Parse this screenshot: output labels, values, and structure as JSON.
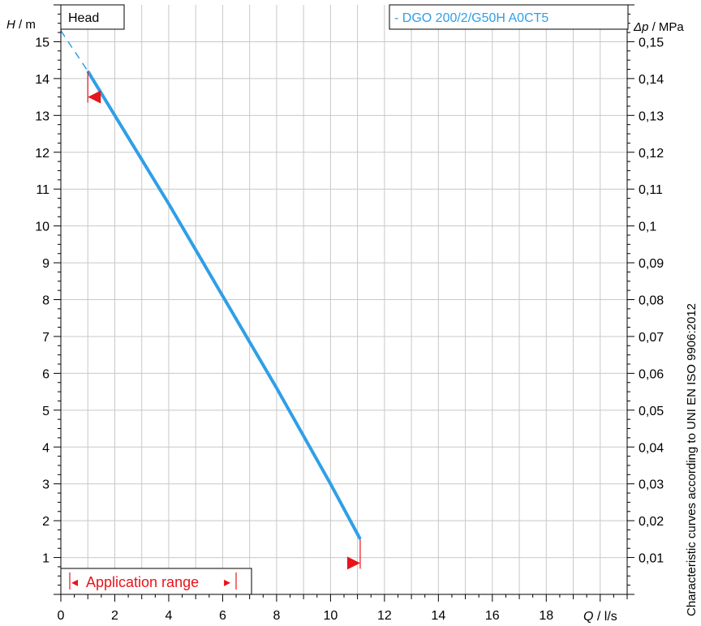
{
  "chart_data": {
    "type": "line",
    "title_box": "Head",
    "legend": "- DGO 200/2/G50H A0CT5",
    "series": [
      {
        "name": "DGO 200/2/G50H A0CT5",
        "color": "#2f9fe6",
        "x": [
          1.0,
          2.0,
          4.0,
          6.0,
          8.0,
          10.0,
          11.1
        ],
        "values": [
          14.2,
          13.0,
          10.6,
          8.1,
          5.6,
          3.0,
          1.5
        ]
      }
    ],
    "dashed_extension": {
      "x": [
        0.0,
        1.0
      ],
      "values": [
        15.3,
        14.2
      ]
    },
    "application_range": {
      "label": "Application range",
      "left_arrow": "◂",
      "right_arrow": "▸",
      "q_min": 1.0,
      "q_max": 11.1,
      "h_min_marker": 13.5,
      "h_max_marker": 0.85
    },
    "x_axis": {
      "label_var": "Q",
      "label_unit": " / l/s",
      "ticks": [
        "0",
        "2",
        "4",
        "6",
        "8",
        "10",
        "12",
        "14",
        "16",
        "18"
      ],
      "min": 0,
      "max": 21
    },
    "y_axis_left": {
      "label_var": "H",
      "label_unit": " / m",
      "ticks": [
        "1",
        "2",
        "3",
        "4",
        "5",
        "6",
        "7",
        "8",
        "9",
        "10",
        "11",
        "12",
        "13",
        "14",
        "15"
      ],
      "min": 0,
      "max": 16
    },
    "y_axis_right": {
      "label_var": "Δp",
      "label_unit": " / MPa",
      "ticks": [
        "0,01",
        "0,02",
        "0,03",
        "0,04",
        "0,05",
        "0,06",
        "0,07",
        "0,08",
        "0,09",
        "0,1",
        "0,11",
        "0,12",
        "0,13",
        "0,14",
        "0,15"
      ],
      "min": 0,
      "max": 0.16
    },
    "side_note": "Characteristic curves according to UNI EN ISO 9906:2012",
    "grid": true,
    "colors": {
      "curve": "#2f9fe6",
      "range": "#e8141b",
      "grid": "#c8c8c8",
      "axis": "#000000"
    }
  }
}
